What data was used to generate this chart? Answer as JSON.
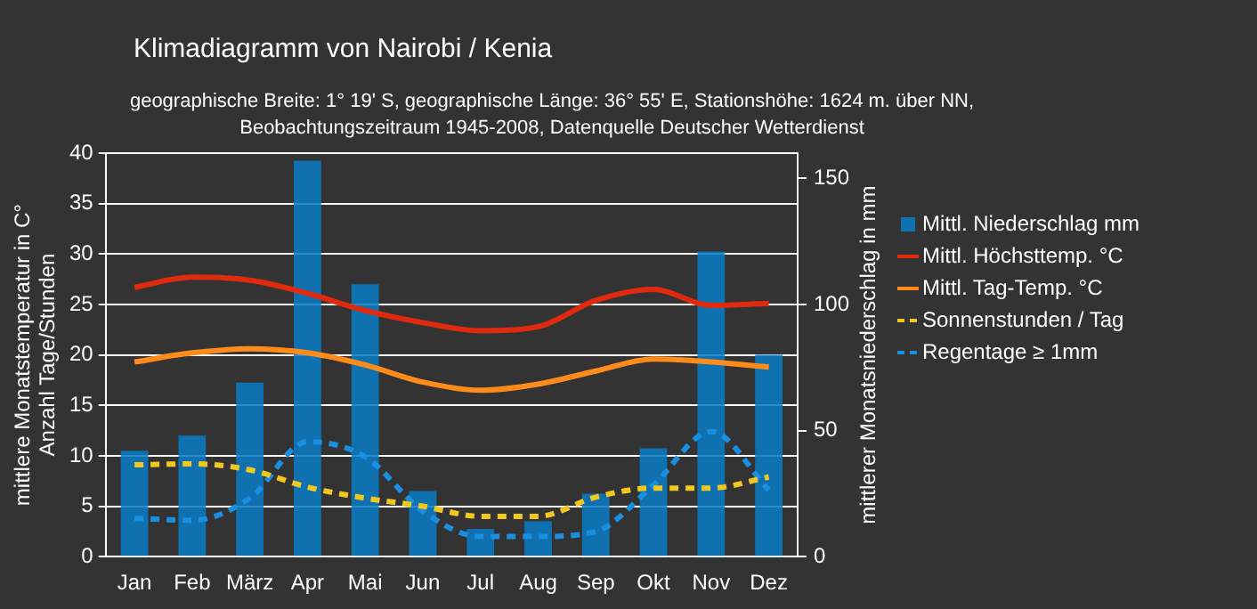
{
  "chart_data": {
    "type": "bar",
    "title": "Klimadiagramm von Nairobi / Kenia",
    "subtitle": "geographische Breite: 1° 19' S, geographische Länge: 36° 55' E, Stationshöhe: 1624 m. über NN,\nBeobachtungszeitraum 1945-2008, Datenquelle Deutscher Wetterdienst",
    "ylabel": "mittlere Monatstemperatur in C°\nAnzahl Tage/Stunden",
    "y2label": "mittlerer Monatsniederschlag in mm",
    "categories": [
      "Jan",
      "Feb",
      "März",
      "Apr",
      "Mai",
      "Jun",
      "Jul",
      "Aug",
      "Sep",
      "Okt",
      "Nov",
      "Dez"
    ],
    "series": [
      {
        "name": "Mittl. Niederschlag mm",
        "axis": "y2",
        "color": "#0a7cc4",
        "values": [
          42,
          48,
          69,
          157,
          108,
          26,
          11,
          14,
          25,
          43,
          121,
          80
        ]
      },
      {
        "name": "Mittl. Höchsttemp. °C",
        "type": "line",
        "color": "#e02a10",
        "line_style": "solid",
        "values": [
          26.7,
          27.7,
          27.4,
          26.1,
          24.4,
          23.2,
          22.4,
          22.8,
          25.4,
          26.5,
          24.9,
          25.1
        ]
      },
      {
        "name": "Mittl. Tag-Temp. °C",
        "type": "line",
        "color": "#ff8c1a",
        "line_style": "solid",
        "values": [
          19.3,
          20.2,
          20.6,
          20.2,
          19.0,
          17.3,
          16.5,
          17.1,
          18.4,
          19.6,
          19.3,
          18.8
        ]
      },
      {
        "name": "Sonnenstunden / Tag",
        "type": "line",
        "color": "#f2c81e",
        "line_style": "dashed",
        "values": [
          9.1,
          9.2,
          8.6,
          6.9,
          5.8,
          5.0,
          4.0,
          4.0,
          5.9,
          6.8,
          6.8,
          7.9
        ]
      },
      {
        "name": "Regentage ≥ 1mm",
        "type": "line",
        "color": "#1a8ee0",
        "line_style": "dashed",
        "values": [
          3.8,
          3.6,
          5.8,
          11.4,
          9.9,
          4.5,
          2.0,
          2.0,
          2.5,
          7.1,
          12.4,
          6.6
        ]
      }
    ],
    "ylim": [
      0,
      40
    ],
    "yticks": [
      0,
      5,
      10,
      15,
      20,
      25,
      30,
      35,
      40
    ],
    "y2lim": [
      0,
      160
    ],
    "y2ticks": [
      0,
      50,
      100,
      150
    ],
    "grid": "y",
    "legend": "right",
    "marker": "none"
  }
}
